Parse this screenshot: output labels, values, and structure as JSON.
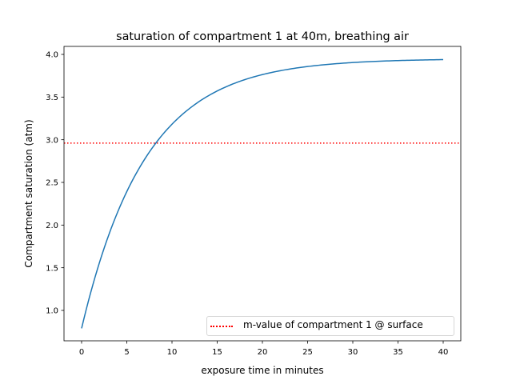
{
  "chart_data": {
    "type": "line",
    "title": "saturation of compartment 1 at 40m, breathing air",
    "xlabel": "exposure time in minutes",
    "ylabel": "Compartment saturation (atm)",
    "xlim": [
      -2,
      42
    ],
    "ylim": [
      0.64,
      4.09
    ],
    "xticks": [
      0,
      5,
      10,
      15,
      20,
      25,
      30,
      35,
      40
    ],
    "xtick_labels": [
      "0",
      "5",
      "10",
      "15",
      "20",
      "25",
      "30",
      "35",
      "40"
    ],
    "yticks": [
      1.0,
      1.5,
      2.0,
      2.5,
      3.0,
      3.5,
      4.0
    ],
    "ytick_labels": [
      "1.0",
      "1.5",
      "2.0",
      "2.5",
      "3.0",
      "3.5",
      "4.0"
    ],
    "grid": false,
    "legend_position": "lower right",
    "series": [
      {
        "name": "saturation",
        "color": "#1f77b4",
        "style": "solid",
        "x": [
          0,
          2,
          4,
          6,
          8,
          10,
          12,
          14,
          16,
          18,
          20,
          22,
          24,
          26,
          28,
          30,
          32,
          34,
          36,
          38,
          40
        ],
        "values": [
          0.79,
          1.56,
          2.13,
          2.56,
          2.89,
          3.13,
          3.31,
          3.45,
          3.55,
          3.63,
          3.69,
          3.73,
          3.77,
          3.79,
          3.81,
          3.83,
          3.84,
          3.85,
          3.85,
          3.86,
          3.95
        ]
      },
      {
        "name": "m-value of compartment 1 @ surface",
        "color": "#ff0000",
        "style": "dotted",
        "type": "hline",
        "y": 2.96
      }
    ]
  },
  "legend": {
    "entries": [
      {
        "label": "m-value of compartment 1 @ surface",
        "color": "#ff0000"
      }
    ]
  }
}
